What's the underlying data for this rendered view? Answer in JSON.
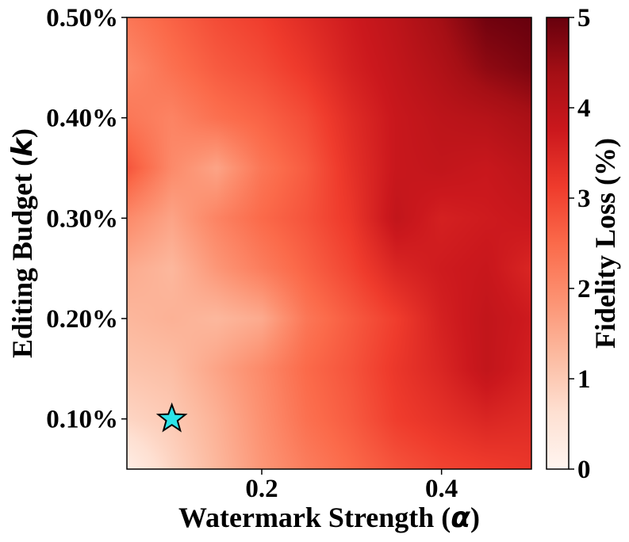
{
  "chart_data": {
    "type": "heatmap",
    "title": "",
    "xlabel": "Watermark Strength (α)",
    "xlabel_main": "Watermark Strength (",
    "xlabel_symbol": "α",
    "xlabel_end": ")",
    "ylabel": "Editing Budget (k)",
    "ylabel_main": "Editing Budget (",
    "ylabel_symbol": "k",
    "ylabel_end": ")",
    "xlim": [
      0.05,
      0.5
    ],
    "ylim": [
      0.05,
      0.5
    ],
    "x_ticks": [
      0.2,
      0.4
    ],
    "x_tick_labels": [
      "0.2",
      "0.4"
    ],
    "y_ticks": [
      0.1,
      0.2,
      0.3,
      0.4,
      0.5
    ],
    "y_tick_labels": [
      "0.10%",
      "0.20%",
      "0.30%",
      "0.40%",
      "0.50%"
    ],
    "x": [
      0.05,
      0.1,
      0.15,
      0.2,
      0.25,
      0.3,
      0.35,
      0.4,
      0.45,
      0.5
    ],
    "y": [
      0.05,
      0.1,
      0.15,
      0.2,
      0.25,
      0.3,
      0.35,
      0.4,
      0.45,
      0.5
    ],
    "z_rows_from_bottom": [
      [
        0.2,
        0.8,
        1.3,
        1.8,
        2.2,
        2.5,
        2.8,
        3.0,
        3.1,
        3.2
      ],
      [
        0.8,
        1.0,
        1.4,
        1.9,
        2.4,
        2.7,
        3.1,
        3.3,
        3.5,
        3.4
      ],
      [
        1.1,
        1.2,
        1.6,
        2.0,
        2.5,
        2.8,
        3.2,
        3.5,
        3.9,
        3.6
      ],
      [
        1.3,
        1.4,
        1.3,
        1.5,
        2.3,
        2.7,
        3.1,
        3.6,
        3.9,
        3.7
      ],
      [
        1.5,
        1.3,
        1.8,
        2.2,
        2.6,
        3.0,
        3.5,
        3.7,
        3.8,
        3.5
      ],
      [
        2.0,
        1.6,
        2.1,
        2.5,
        2.8,
        3.2,
        3.9,
        3.6,
        3.7,
        3.8
      ],
      [
        2.8,
        2.0,
        1.6,
        2.3,
        2.7,
        3.3,
        3.8,
        3.9,
        3.8,
        4.0
      ],
      [
        2.3,
        2.1,
        2.4,
        2.6,
        2.9,
        3.4,
        3.8,
        4.0,
        4.1,
        4.3
      ],
      [
        2.0,
        2.4,
        2.7,
        2.9,
        3.2,
        3.6,
        3.9,
        4.2,
        4.6,
        4.8
      ],
      [
        2.3,
        2.6,
        2.9,
        3.1,
        3.4,
        3.7,
        4.0,
        4.4,
        4.9,
        5.0
      ]
    ],
    "colorbar": {
      "label": "Fidelity Loss (%)",
      "range": [
        0,
        5
      ],
      "ticks": [
        0,
        1,
        2,
        3,
        4,
        5
      ],
      "tick_labels": [
        "0",
        "1",
        "2",
        "3",
        "4",
        "5"
      ],
      "colormap": "Reds",
      "colors": [
        "#fff5f0",
        "#fee0d2",
        "#fcbba1",
        "#fc9272",
        "#fb6a4a",
        "#ef3b2c",
        "#cb181d",
        "#a50f15",
        "#67000d"
      ]
    },
    "marker": {
      "shape": "star",
      "x": 0.1,
      "y": 0.1,
      "color": "#2ce3e8",
      "edge_color": "#000000"
    },
    "grid": false
  }
}
